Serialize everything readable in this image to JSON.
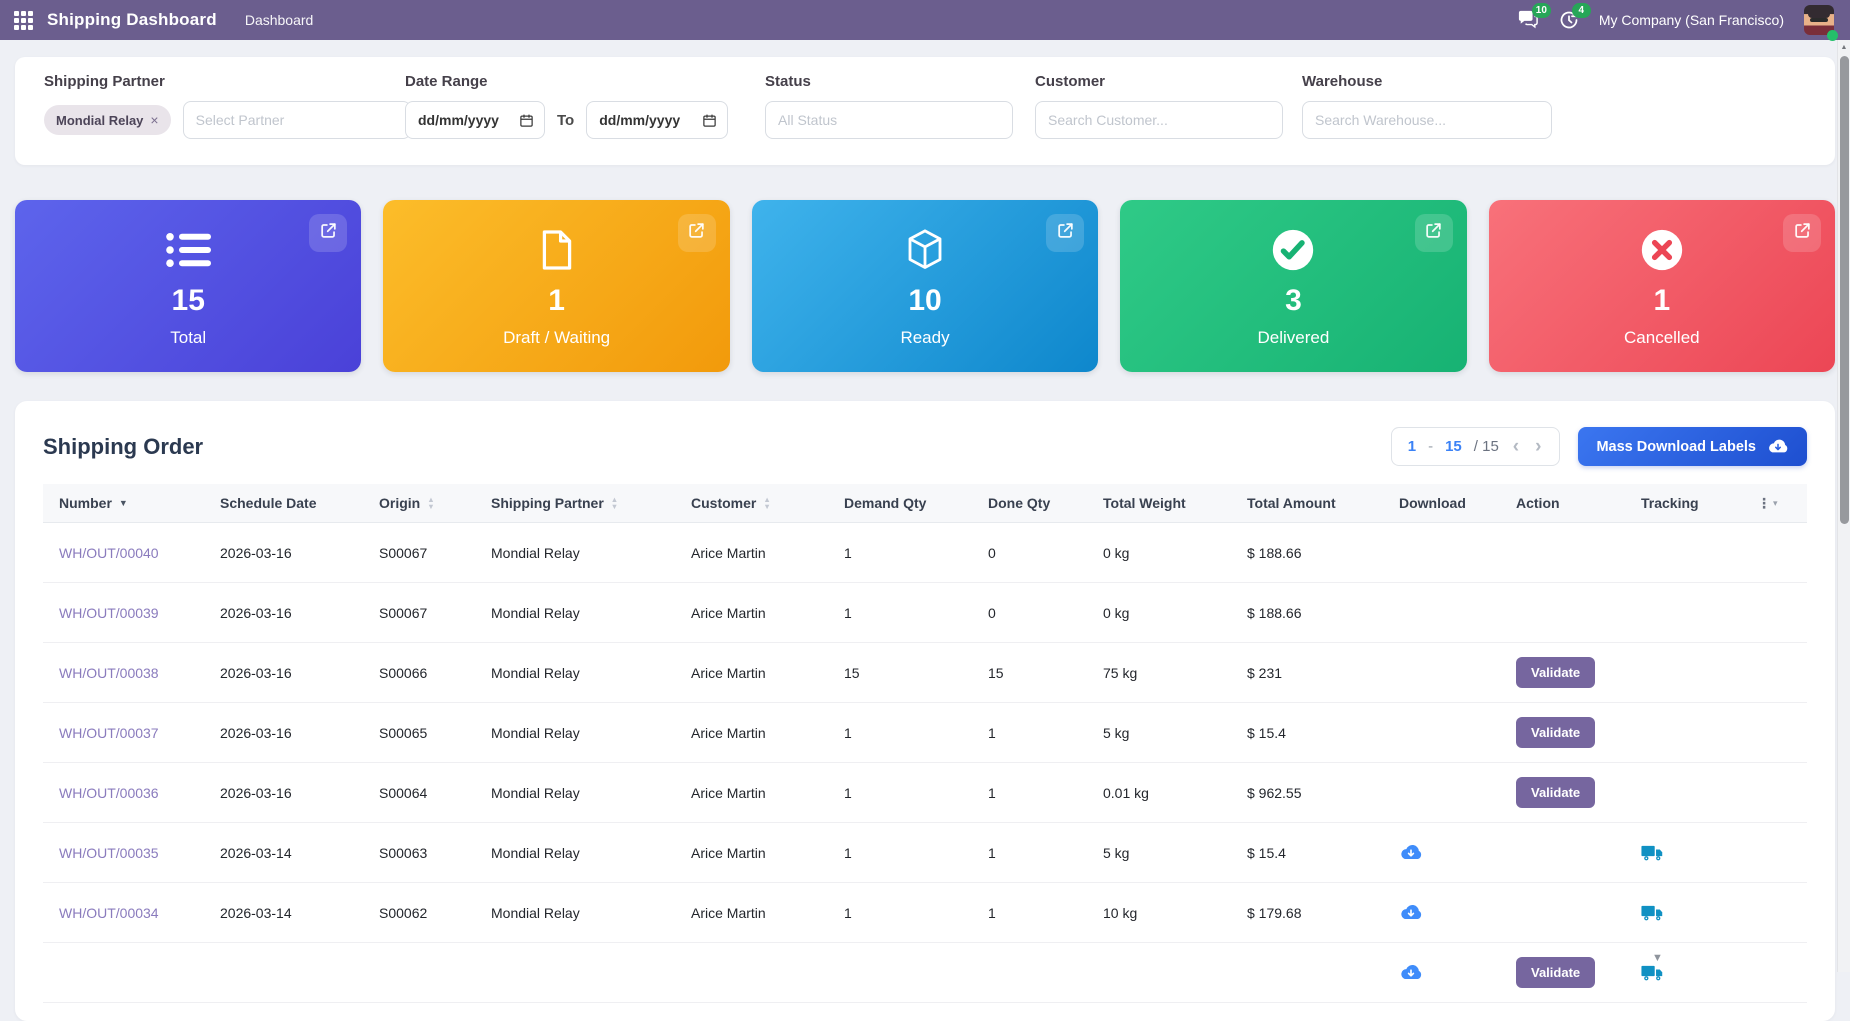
{
  "navbar": {
    "app_title": "Shipping Dashboard",
    "menu_item": "Dashboard",
    "messages_badge": "10",
    "activities_badge": "4",
    "company_name": "My Company (San Francisco)"
  },
  "filters": {
    "shipping_partner": {
      "label": "Shipping Partner",
      "tag": "Mondial Relay",
      "placeholder": "Select Partner"
    },
    "date_range": {
      "label": "Date Range",
      "from_value": "dd/mm/yyyy",
      "to_label": "To",
      "to_value": "dd/mm/yyyy"
    },
    "status": {
      "label": "Status",
      "placeholder": "All Status"
    },
    "customer": {
      "label": "Customer",
      "placeholder": "Search Customer..."
    },
    "warehouse": {
      "label": "Warehouse",
      "placeholder": "Search Warehouse..."
    }
  },
  "cards": [
    {
      "value": "15",
      "label": "Total",
      "icon": "list-icon",
      "color_from": "#5d64ec",
      "color_to": "#4a41d8"
    },
    {
      "value": "1",
      "label": "Draft / Waiting",
      "icon": "file-icon",
      "color_from": "#fcbd2a",
      "color_to": "#f29a0b"
    },
    {
      "value": "10",
      "label": "Ready",
      "icon": "cube-icon",
      "color_from": "#3fb3ec",
      "color_to": "#0e87cc"
    },
    {
      "value": "3",
      "label": "Delivered",
      "icon": "check-circle-icon",
      "color_from": "#2fca87",
      "color_to": "#17b273"
    },
    {
      "value": "1",
      "label": "Cancelled",
      "icon": "x-circle-icon",
      "color_from": "#f8717a",
      "color_to": "#ec4655"
    }
  ],
  "orders": {
    "title": "Shipping Order",
    "pagination": {
      "start": "1",
      "dash": "-",
      "end": "15",
      "total": "/ 15"
    },
    "mass_download_label": "Mass Download Labels",
    "validate_label": "Validate",
    "columns": [
      {
        "label": "Number",
        "sort": "desc"
      },
      {
        "label": "Schedule Date",
        "sort": null
      },
      {
        "label": "Origin",
        "sort": "both"
      },
      {
        "label": "Shipping Partner",
        "sort": "both"
      },
      {
        "label": "Customer",
        "sort": "both"
      },
      {
        "label": "Demand Qty",
        "sort": null
      },
      {
        "label": "Done Qty",
        "sort": null
      },
      {
        "label": "Total Weight",
        "sort": null
      },
      {
        "label": "Total Amount",
        "sort": null
      },
      {
        "label": "Download",
        "sort": null
      },
      {
        "label": "Action",
        "sort": null
      },
      {
        "label": "Tracking",
        "sort": null
      }
    ],
    "rows": [
      {
        "number": "WH/OUT/00040",
        "schedule_date": "2026-03-16",
        "origin": "S00067",
        "partner": "Mondial Relay",
        "customer": "Arice Martin",
        "demand_qty": "1",
        "done_qty": "0",
        "total_weight": "0 kg",
        "total_amount": "$ 188.66",
        "download": false,
        "validate": false,
        "tracking": false
      },
      {
        "number": "WH/OUT/00039",
        "schedule_date": "2026-03-16",
        "origin": "S00067",
        "partner": "Mondial Relay",
        "customer": "Arice Martin",
        "demand_qty": "1",
        "done_qty": "0",
        "total_weight": "0 kg",
        "total_amount": "$ 188.66",
        "download": false,
        "validate": false,
        "tracking": false
      },
      {
        "number": "WH/OUT/00038",
        "schedule_date": "2026-03-16",
        "origin": "S00066",
        "partner": "Mondial Relay",
        "customer": "Arice Martin",
        "demand_qty": "15",
        "done_qty": "15",
        "total_weight": "75 kg",
        "total_amount": "$ 231",
        "download": false,
        "validate": true,
        "tracking": false
      },
      {
        "number": "WH/OUT/00037",
        "schedule_date": "2026-03-16",
        "origin": "S00065",
        "partner": "Mondial Relay",
        "customer": "Arice Martin",
        "demand_qty": "1",
        "done_qty": "1",
        "total_weight": "5 kg",
        "total_amount": "$ 15.4",
        "download": false,
        "validate": true,
        "tracking": false
      },
      {
        "number": "WH/OUT/00036",
        "schedule_date": "2026-03-16",
        "origin": "S00064",
        "partner": "Mondial Relay",
        "customer": "Arice Martin",
        "demand_qty": "1",
        "done_qty": "1",
        "total_weight": "0.01 kg",
        "total_amount": "$ 962.55",
        "download": false,
        "validate": true,
        "tracking": false
      },
      {
        "number": "WH/OUT/00035",
        "schedule_date": "2026-03-14",
        "origin": "S00063",
        "partner": "Mondial Relay",
        "customer": "Arice Martin",
        "demand_qty": "1",
        "done_qty": "1",
        "total_weight": "5 kg",
        "total_amount": "$ 15.4",
        "download": true,
        "validate": false,
        "tracking": true
      },
      {
        "number": "WH/OUT/00034",
        "schedule_date": "2026-03-14",
        "origin": "S00062",
        "partner": "Mondial Relay",
        "customer": "Arice Martin",
        "demand_qty": "1",
        "done_qty": "1",
        "total_weight": "10 kg",
        "total_amount": "$ 179.68",
        "download": true,
        "validate": false,
        "tracking": true
      },
      {
        "number": "",
        "schedule_date": "",
        "origin": "",
        "partner": "",
        "customer": "",
        "demand_qty": "",
        "done_qty": "",
        "total_weight": "",
        "total_amount": "",
        "download": true,
        "validate": true,
        "tracking": true
      }
    ]
  },
  "icons": {
    "close": "×",
    "prev": "‹",
    "next": "›",
    "kebab": "⋮",
    "caret_down": "▾",
    "sort_asc": "▲",
    "sort_desc": "▼",
    "scroll_up": "▲"
  },
  "colors": {
    "navbar": "#6b5e8e",
    "badge_green": "#27a658",
    "page_bg": "#eef0f5",
    "mass_button": "#2a5fe0",
    "validate_button": "#76669f",
    "order_link": "#8a7bbd",
    "download_icon": "#3f8cfa",
    "tracking_icon": "#1091c3",
    "pagination_accent": "#3b82f6"
  }
}
